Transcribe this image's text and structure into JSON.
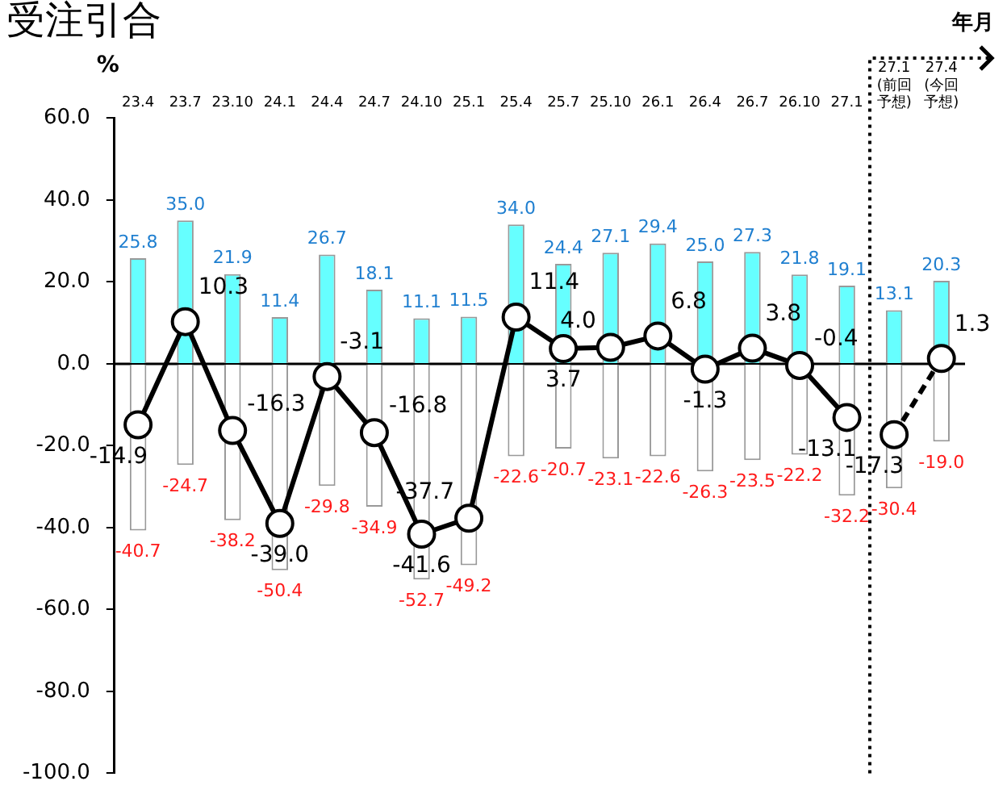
{
  "chart_data": {
    "type": "bar",
    "title": "受注引合",
    "ylabel": "%",
    "xlabel": "年月",
    "categories": [
      "23.4",
      "23.7",
      "23.10",
      "24.1",
      "24.4",
      "24.7",
      "24.10",
      "25.1",
      "25.4",
      "25.7",
      "25.10",
      "26.1",
      "26.4",
      "26.7",
      "26.10",
      "27.1",
      "27.1(前回予想)",
      "27.4(今回予想)"
    ],
    "stacked": true,
    "series": [
      {
        "color": "#66ffff",
        "values": [
          25.8,
          35.0,
          21.9,
          11.4,
          26.7,
          18.1,
          11.1,
          11.5,
          34.0,
          24.4,
          27.1,
          29.4,
          25.0,
          27.3,
          21.8,
          19.1,
          13.1,
          20.3
        ],
        "value_labels": [
          "25.8",
          "35.0",
          "21.9",
          "11.4",
          "26.7",
          "18.1",
          "11.1",
          "11.5",
          "34.0",
          "24.4",
          "27.1",
          "29.4",
          "25.0",
          "27.3",
          "21.8",
          "19.1",
          "13.1",
          "20.3"
        ]
      },
      {
        "color": "#ffffff",
        "values": [
          -40.7,
          -24.7,
          -38.2,
          -50.4,
          -29.8,
          -34.9,
          -52.7,
          -49.2,
          -22.6,
          -20.7,
          -23.1,
          -22.6,
          -26.3,
          -23.5,
          -22.2,
          -32.2,
          -30.4,
          -19.0
        ],
        "value_labels": [
          "-40.7",
          "-24.7",
          "-38.2",
          "-50.4",
          "-29.8",
          "-34.9",
          "-52.7",
          "-49.2",
          "-22.6",
          "-20.7",
          "-23.1",
          "-22.6",
          "-26.3",
          "-23.5",
          "-22.2",
          "-32.2",
          "-30.4",
          "-19.0"
        ]
      },
      {
        "type": "line",
        "color": "#000000",
        "line_style": "solid",
        "values": [
          -14.9,
          10.3,
          -16.3,
          -39.0,
          -3.1,
          -16.8,
          -41.6,
          -37.7,
          11.4,
          3.7,
          4.0,
          6.8,
          -1.3,
          3.8,
          -0.4,
          -13.1,
          null,
          null
        ],
        "value_labels": [
          "-14.9",
          "10.3",
          "-16.3",
          "-39.0",
          "-3.1",
          "-16.8",
          "-41.6",
          "-37.7",
          "11.4",
          "3.7",
          "4.0",
          "6.8",
          "-1.3",
          "3.8",
          "-0.4",
          "-13.1",
          null,
          null
        ]
      },
      {
        "type": "line",
        "color": "#000000",
        "line_style": "dashed",
        "values": [
          null,
          null,
          null,
          null,
          null,
          null,
          null,
          null,
          null,
          null,
          null,
          null,
          null,
          null,
          null,
          null,
          -17.3,
          1.3
        ],
        "value_labels": [
          null,
          null,
          null,
          null,
          null,
          null,
          null,
          null,
          null,
          null,
          null,
          null,
          null,
          null,
          null,
          null,
          "-17.3",
          "1.3"
        ]
      }
    ],
    "marker": "circle",
    "ylim": [
      -100,
      60
    ],
    "yticks": [
      {
        "value": 60,
        "label": "60.0"
      },
      {
        "value": 40,
        "label": "40.0"
      },
      {
        "value": 20,
        "label": "20.0"
      },
      {
        "value": 0,
        "label": "0.0"
      },
      {
        "value": -20,
        "label": "-20.0"
      },
      {
        "value": -40,
        "label": "-40.0"
      },
      {
        "value": -60,
        "label": "-60.0"
      },
      {
        "value": -80,
        "label": "-80.0"
      },
      {
        "value": -100,
        "label": "-100.0"
      }
    ],
    "ref_lines": [
      {
        "axis": "y",
        "value": 0,
        "color": "#000000"
      }
    ],
    "legend": false
  }
}
